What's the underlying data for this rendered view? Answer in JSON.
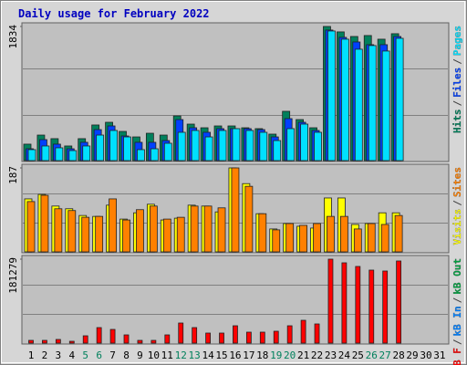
{
  "chart_data": {
    "type": "bar",
    "title": "Daily usage for February 2022",
    "legend_separator": "/",
    "categories": [
      "1",
      "2",
      "3",
      "4",
      "5",
      "6",
      "7",
      "8",
      "9",
      "10",
      "11",
      "12",
      "13",
      "14",
      "15",
      "16",
      "17",
      "18",
      "19",
      "20",
      "21",
      "22",
      "23",
      "24",
      "25",
      "26",
      "27",
      "28",
      "29",
      "30",
      "31"
    ],
    "category_colors": [
      "#000000",
      "#000000",
      "#000000",
      "#000000",
      "#00805c",
      "#00805c",
      "#000000",
      "#000000",
      "#000000",
      "#000000",
      "#000000",
      "#00805c",
      "#00805c",
      "#000000",
      "#000000",
      "#000000",
      "#000000",
      "#000000",
      "#00805c",
      "#00805c",
      "#000000",
      "#000000",
      "#000000",
      "#000000",
      "#000000",
      "#00805c",
      "#00805c",
      "#000000",
      "#000000",
      "#000000",
      "#000000"
    ],
    "panels": [
      {
        "ylim": [
          0,
          1834
        ],
        "yticks": [
          1834
        ],
        "series": [
          {
            "name": "Hits",
            "color": "#00805c",
            "values": [
              225,
              349,
              300,
              200,
              300,
              487,
              524,
              399,
              324,
              374,
              349,
              611,
              499,
              449,
              474,
              474,
              449,
              437,
              362,
              674,
              561,
              449,
              1834,
              1760,
              1697,
              1710,
              1660,
              1735,
              null,
              null,
              null
            ]
          },
          {
            "name": "Files",
            "color": "#0040ff",
            "values": [
              162,
              287,
              225,
              162,
              250,
              424,
              474,
              337,
              250,
              250,
              274,
              561,
              449,
              387,
              437,
              437,
              437,
              424,
              324,
              574,
              524,
              412,
              1785,
              1685,
              1622,
              1585,
              1585,
              1697,
              null,
              null,
              null
            ]
          },
          {
            "name": "Pages",
            "color": "#00e0ff",
            "values": [
              150,
              200,
              175,
              137,
              200,
              349,
              412,
              324,
              150,
              162,
              237,
              387,
              412,
              324,
              412,
              437,
              412,
              387,
              274,
              437,
              499,
              387,
              1772,
              1660,
              1523,
              1573,
              1498,
              1672,
              null,
              null,
              null
            ]
          }
        ]
      },
      {
        "ylim": [
          0,
          187
        ],
        "yticks": [
          187
        ],
        "series": [
          {
            "name": "Visits",
            "color": "#ffff00",
            "values": [
              118,
              128,
              102,
              96,
              81,
              79,
              104,
              73,
              87,
              106,
              71,
              75,
              104,
              102,
              89,
              187,
              152,
              85,
              51,
              63,
              57,
              53,
              120,
              120,
              61,
              63,
              87,
              87,
              null,
              null,
              null
            ]
          },
          {
            "name": "Sites",
            "color": "#ff8000",
            "values": [
              112,
              126,
              96,
              92,
              77,
              79,
              118,
              71,
              94,
              102,
              73,
              77,
              102,
              102,
              98,
              187,
              146,
              85,
              49,
              63,
              59,
              63,
              79,
              79,
              51,
              63,
              61,
              81,
              null,
              null,
              null
            ]
          }
        ]
      },
      {
        "ylim": [
          0,
          181279
        ],
        "yticks": [
          181279
        ],
        "series": [
          {
            "name": "kB F",
            "color": "#ff0000",
            "values": [
              5911,
              5911,
              7881,
              3940,
              15763,
              33497,
              29557,
              17733,
              5911,
              5911,
              17733,
              43348,
              33497,
              21674,
              21674,
              37438,
              23645,
              23645,
              25615,
              37438,
              49261,
              41378,
              181279,
              173398,
              165517,
              157635,
              155665,
              177338,
              null,
              null,
              null
            ]
          },
          {
            "name": "kB In",
            "color": "#0080ff",
            "values": [
              null,
              null,
              null,
              null,
              null,
              null,
              null,
              null,
              null,
              null,
              null,
              null,
              null,
              null,
              null,
              null,
              null,
              null,
              null,
              null,
              null,
              null,
              null,
              null,
              null,
              null,
              null,
              null,
              null,
              null,
              null
            ]
          },
          {
            "name": "kB Out",
            "color": "#00a040",
            "values": [
              null,
              null,
              null,
              null,
              null,
              null,
              null,
              null,
              null,
              null,
              null,
              null,
              null,
              null,
              null,
              null,
              null,
              null,
              null,
              null,
              null,
              null,
              null,
              null,
              null,
              null,
              null,
              null,
              null,
              null,
              null
            ]
          }
        ]
      }
    ]
  }
}
